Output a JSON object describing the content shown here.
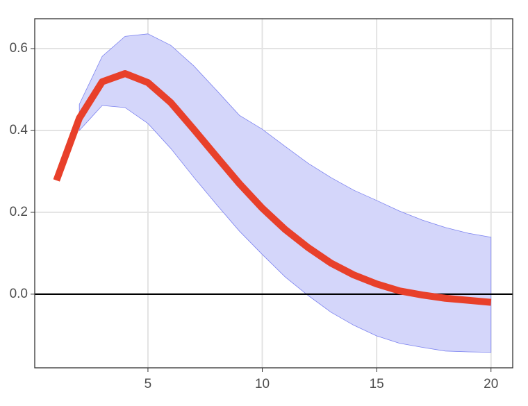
{
  "chart_data": {
    "type": "line",
    "x": [
      1,
      2,
      3,
      4,
      5,
      6,
      7,
      8,
      9,
      10,
      11,
      12,
      13,
      14,
      15,
      16,
      17,
      18,
      19,
      20
    ],
    "values": [
      0.278,
      0.43,
      0.519,
      0.539,
      0.517,
      0.468,
      0.403,
      0.336,
      0.27,
      0.21,
      0.158,
      0.114,
      0.076,
      0.047,
      0.025,
      0.008,
      -0.002,
      -0.01,
      -0.015,
      -0.02
    ],
    "upper": [
      null,
      0.464,
      0.581,
      0.63,
      0.636,
      0.608,
      0.558,
      0.498,
      0.437,
      0.403,
      0.361,
      0.32,
      0.285,
      0.254,
      0.229,
      0.203,
      0.181,
      0.163,
      0.149,
      0.139
    ],
    "lower": [
      null,
      0.4,
      0.461,
      0.456,
      0.417,
      0.356,
      0.286,
      0.219,
      0.154,
      0.097,
      0.042,
      -0.003,
      -0.044,
      -0.076,
      -0.102,
      -0.12,
      -0.13,
      -0.139,
      -0.141,
      -0.142
    ],
    "color": "#e8402a",
    "band_color": "#d4d6fa",
    "band_edge": "#7b82f0",
    "hline": 0,
    "xlim": [
      0.05,
      20.95
    ],
    "ylim": [
      -0.18,
      0.673
    ],
    "xticks": [
      5,
      10,
      15,
      20
    ],
    "yticks": [
      {
        "value": 0,
        "label": "0.0"
      },
      0.2,
      0.4,
      0.6
    ],
    "grid": true
  }
}
